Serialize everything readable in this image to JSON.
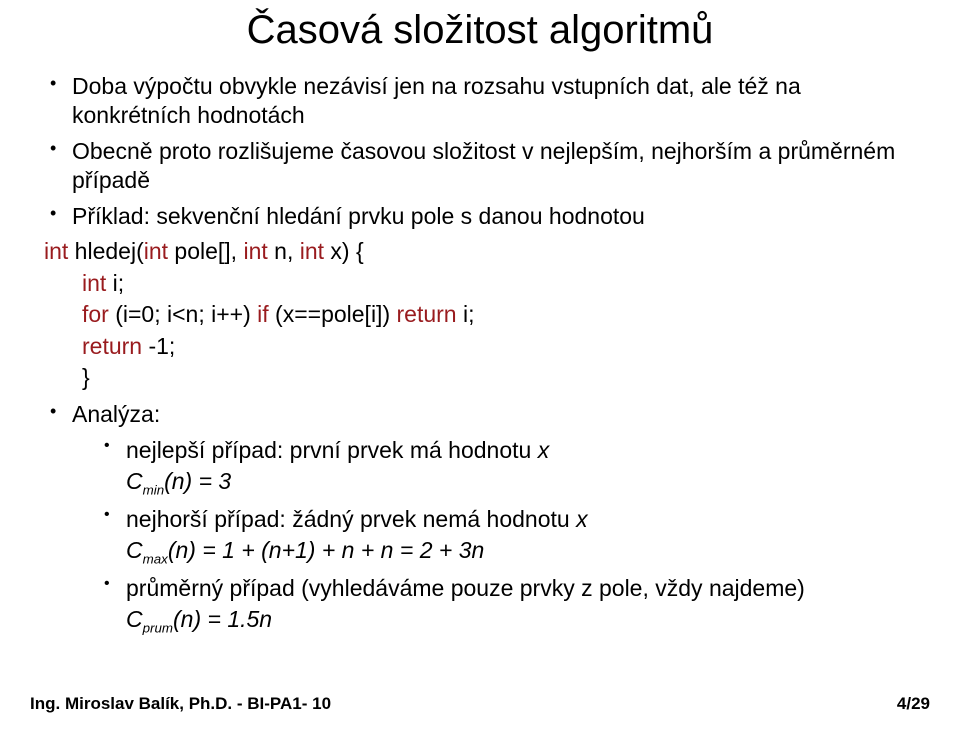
{
  "title": "Časová složitost algoritmů",
  "bullets": {
    "b1": "Doba výpočtu obvykle nezávisí jen na rozsahu vstupních dat, ale též na konkrétních hodnotách",
    "b2": "Obecně proto rozlišujeme časovou složitost v nejlepším, nejhorším  a průměrném případě",
    "b3": "Příklad: sekvenční hledání prvku pole s danou hodnotou"
  },
  "code": {
    "sig1": "int",
    "sig2": " hledej(",
    "sig3": "int",
    "sig4": " pole[], ",
    "sig5": "int",
    "sig6": " n, ",
    "sig7": "int",
    "sig8": " x) {",
    "l2a": "int",
    "l2b": " i;",
    "l3a": "for",
    "l3b": " (i=0; i<n; i++) ",
    "l3c": "if",
    "l3d": " (x==pole[i]) ",
    "l3e": "return",
    "l3f": " i;",
    "l4a": "return",
    "l4b": " -1;",
    "l5": "}"
  },
  "analysis": {
    "label": "Analýza:",
    "best": "nejlepší případ: první prvek má hodnotu ",
    "best_x": "x",
    "best_eq_pre": "C",
    "best_sub": "min",
    "best_eq_post": "(n) = 3",
    "worst": "nejhorší případ: žádný prvek nemá hodnotu ",
    "worst_x": "x",
    "worst_eq_pre": "C",
    "worst_sub": "max",
    "worst_eq_post": "(n) = 1 + (n+1) + n + n = 2 + 3n",
    "avg": "průměrný případ (vyhledáváme pouze prvky z pole, vždy najdeme)",
    "avg_eq_pre": "C",
    "avg_sub": "prum",
    "avg_eq_post": "(n) = 1.5n"
  },
  "footer": {
    "left": "Ing. Miroslav Balík, Ph.D. - BI-PA1- 10",
    "right": "4/29"
  },
  "colors": {
    "keyword": "#991b1e",
    "text": "#000000",
    "background": "#ffffff"
  }
}
